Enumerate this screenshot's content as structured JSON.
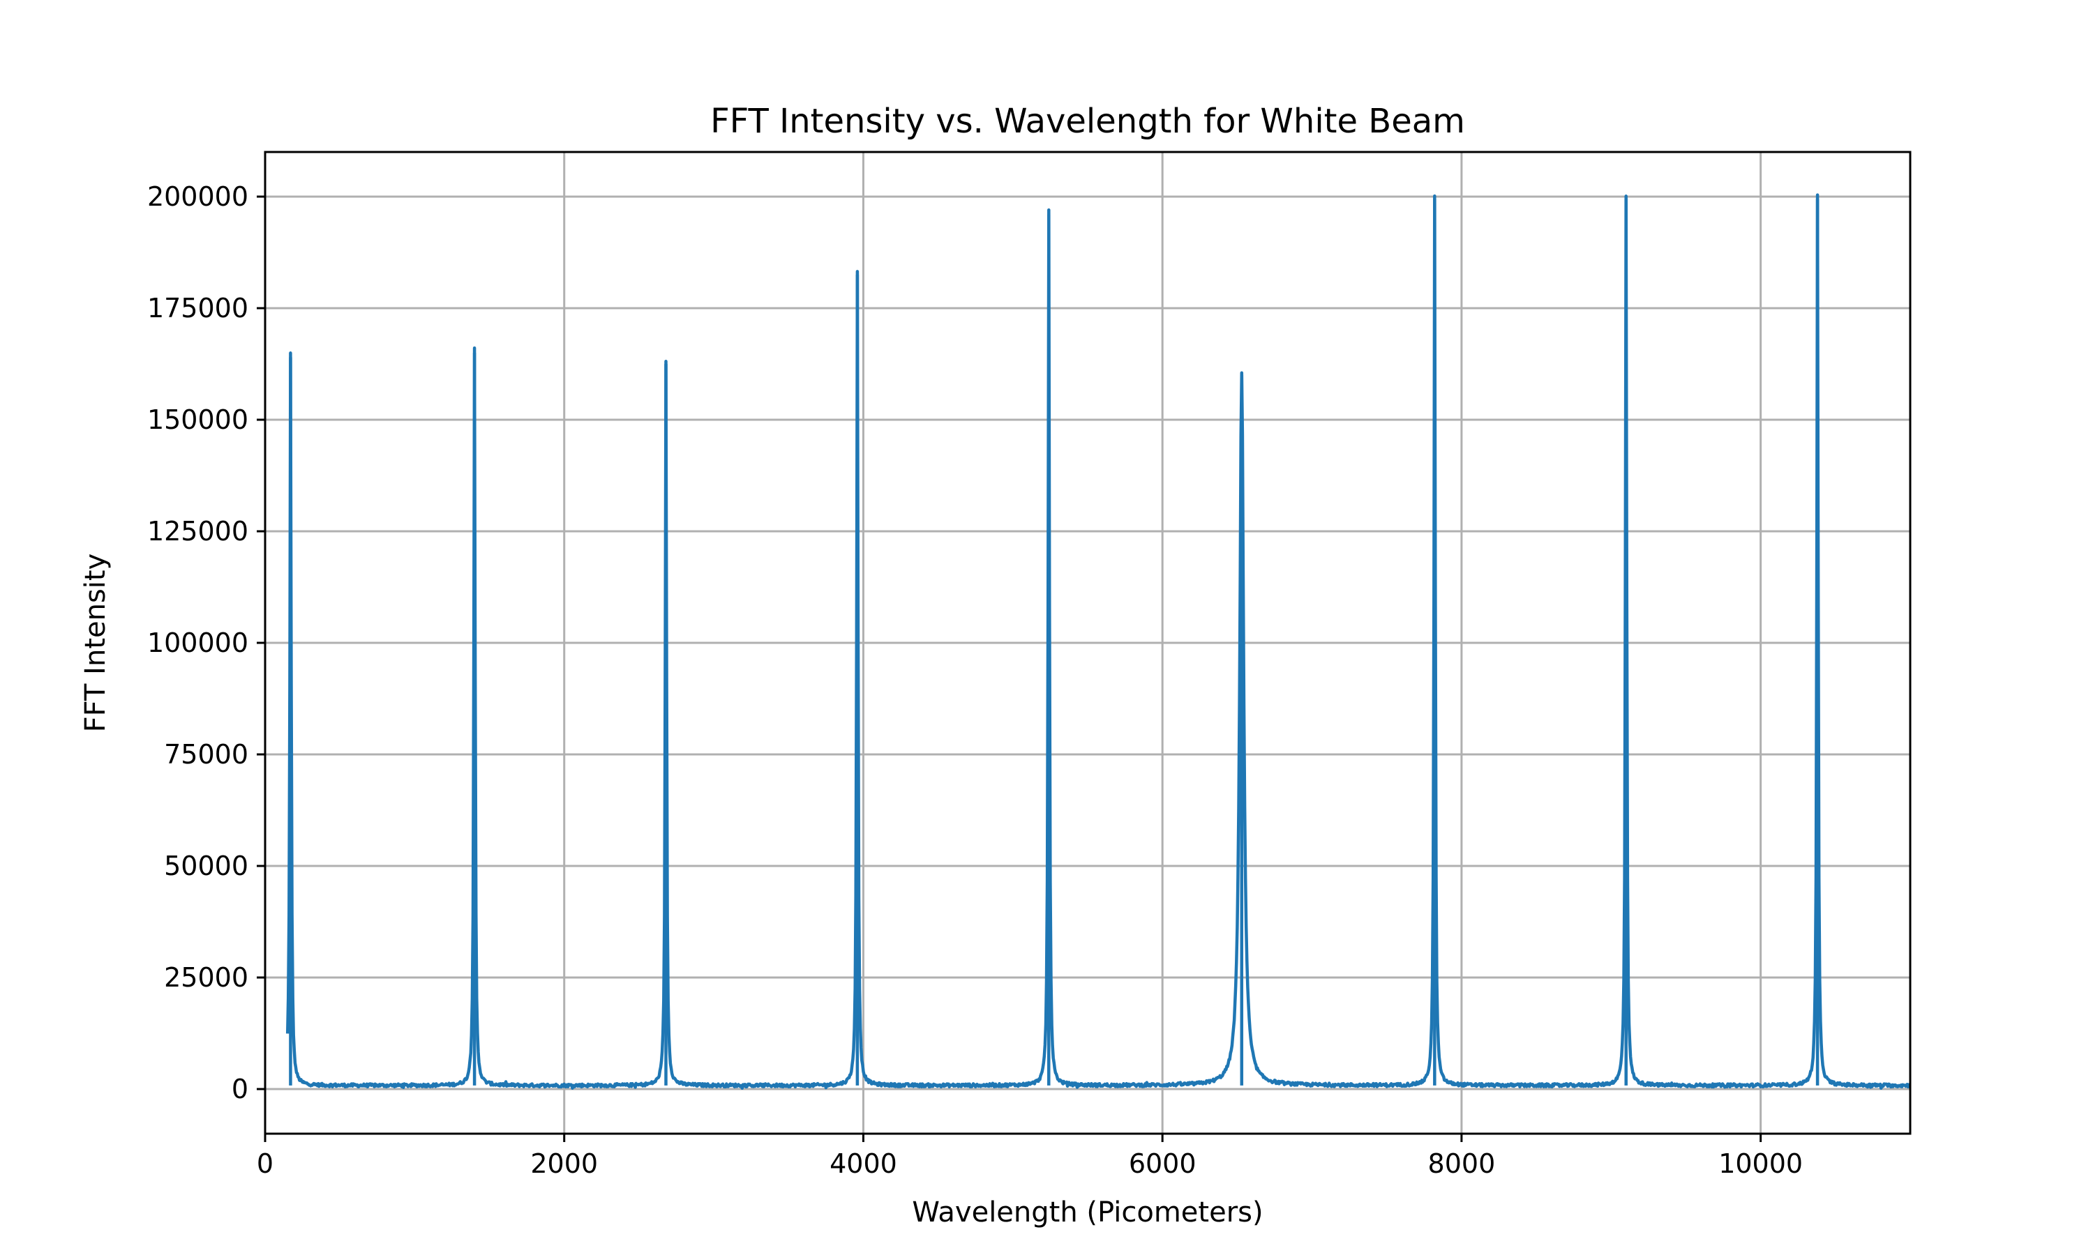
{
  "chart_data": {
    "type": "line",
    "title": "FFT Intensity vs. Wavelength for White Beam",
    "xlabel": "Wavelength (Picometers)",
    "ylabel": "FFT Intensity",
    "xlim": [
      0,
      11000
    ],
    "ylim": [
      -10000,
      210000
    ],
    "xticks": [
      0,
      2000,
      4000,
      6000,
      8000,
      10000
    ],
    "xtick_labels": [
      "0",
      "2000",
      "4000",
      "6000",
      "8000",
      "10000"
    ],
    "yticks": [
      0,
      25000,
      50000,
      75000,
      100000,
      125000,
      150000,
      175000,
      200000
    ],
    "ytick_labels": [
      "0",
      "25000",
      "50000",
      "75000",
      "100000",
      "125000",
      "150000",
      "175000",
      "200000"
    ],
    "grid": true,
    "line_color": "#1f77b4",
    "x_start": 150,
    "x_end": 11000,
    "baseline_level": 800,
    "peaks": [
      {
        "x": 170,
        "y": 164000
      },
      {
        "x": 1400,
        "y": 165000
      },
      {
        "x": 2680,
        "y": 162500
      },
      {
        "x": 3960,
        "y": 182500
      },
      {
        "x": 5240,
        "y": 196000
      },
      {
        "x": 6530,
        "y": 160000
      },
      {
        "x": 7820,
        "y": 199500
      },
      {
        "x": 9100,
        "y": 199500
      },
      {
        "x": 10380,
        "y": 199500
      }
    ]
  }
}
